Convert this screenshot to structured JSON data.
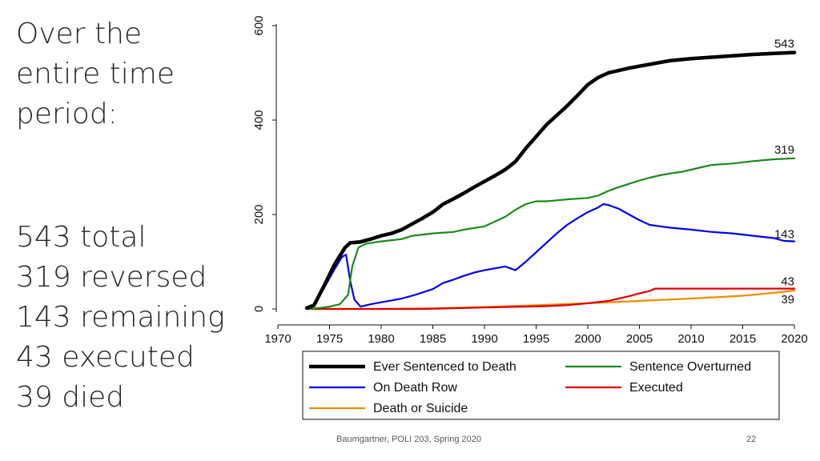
{
  "slide": {
    "heading_lines": [
      "Over the",
      "entire time",
      "period:"
    ],
    "summary_lines": [
      "543 total",
      "319 reversed",
      "143 remaining",
      "43 executed",
      "39 died"
    ],
    "footer": "Baumgartner, POLI 203, Spring 2020",
    "page_number": "22"
  },
  "chart_data": {
    "type": "line",
    "title": "",
    "xlabel": "",
    "ylabel": "",
    "xlim": [
      1970,
      2020
    ],
    "ylim": [
      0,
      600
    ],
    "x_ticks": [
      "1970",
      "1975",
      "1980",
      "1985",
      "1990",
      "1995",
      "2000",
      "2005",
      "2010",
      "2015",
      "2020"
    ],
    "y_ticks": [
      "0",
      "200",
      "400",
      "600"
    ],
    "legend_position": "bottom",
    "series": [
      {
        "name": "Ever Sentenced to Death",
        "color": "#000000",
        "end_label": "543",
        "x": [
          1972.8,
          1973.5,
          1974.5,
          1975.5,
          1976.5,
          1977,
          1978,
          1979,
          1980,
          1981,
          1982,
          1983,
          1984,
          1985,
          1986,
          1987,
          1988,
          1989,
          1990,
          1991,
          1992,
          1993,
          1994,
          1995,
          1996,
          1997,
          1998,
          1999,
          2000,
          2001,
          2002,
          2003,
          2004,
          2005,
          2006,
          2007,
          2008,
          2010,
          2012,
          2014,
          2016,
          2018,
          2020
        ],
        "y": [
          2,
          8,
          50,
          95,
          130,
          140,
          142,
          148,
          155,
          160,
          168,
          180,
          192,
          205,
          222,
          233,
          245,
          258,
          270,
          282,
          295,
          312,
          340,
          365,
          390,
          410,
          430,
          452,
          475,
          490,
          500,
          505,
          510,
          514,
          518,
          522,
          526,
          530,
          533,
          536,
          539,
          541,
          543
        ]
      },
      {
        "name": "Sentence Overturned",
        "color": "#1a8a1a",
        "end_label": "319",
        "x": [
          1972.8,
          1974,
          1975,
          1976,
          1976.8,
          1977.2,
          1977.8,
          1978.5,
          1980,
          1982,
          1983,
          1985,
          1987,
          1988,
          1990,
          1991,
          1992,
          1993,
          1994,
          1995,
          1996,
          1997,
          1998,
          2000,
          2001,
          2002,
          2003,
          2004,
          2005,
          2006,
          2007,
          2008,
          2009,
          2010,
          2011,
          2012,
          2014,
          2016,
          2018,
          2020
        ],
        "y": [
          0,
          2,
          5,
          10,
          30,
          90,
          130,
          138,
          143,
          148,
          155,
          160,
          163,
          168,
          175,
          185,
          195,
          210,
          222,
          228,
          228,
          230,
          232,
          235,
          240,
          250,
          258,
          265,
          272,
          278,
          283,
          287,
          290,
          295,
          300,
          305,
          308,
          313,
          317,
          319
        ]
      },
      {
        "name": "On Death Row",
        "color": "#0000ee",
        "end_label": "143",
        "x": [
          1972.8,
          1973.5,
          1974.5,
          1975.5,
          1976.2,
          1976.6,
          1977,
          1977.4,
          1978,
          1979,
          1980,
          1981,
          1982,
          1983,
          1984,
          1985,
          1986,
          1987,
          1988,
          1989,
          1990,
          1991,
          1992,
          1993,
          1994,
          1995,
          1996,
          1997,
          1998,
          1999,
          2000,
          2001,
          2001.5,
          2002,
          2003,
          2004,
          2005,
          2006,
          2007,
          2008,
          2010,
          2012,
          2014,
          2016,
          2018,
          2019,
          2020
        ],
        "y": [
          2,
          8,
          45,
          85,
          110,
          115,
          60,
          20,
          5,
          10,
          14,
          18,
          22,
          28,
          35,
          42,
          55,
          62,
          70,
          77,
          82,
          86,
          90,
          82,
          100,
          120,
          140,
          160,
          178,
          192,
          205,
          215,
          222,
          220,
          212,
          200,
          188,
          178,
          175,
          172,
          168,
          163,
          160,
          155,
          150,
          144,
          143
        ]
      },
      {
        "name": "Executed",
        "color": "#e00000",
        "end_label": "43",
        "x": [
          1972.8,
          1984,
          1986,
          1988,
          1990,
          1992,
          1994,
          1996,
          1998,
          2000,
          2002,
          2003,
          2004,
          2005,
          2006,
          2006.5,
          2008,
          2010,
          2015,
          2020
        ],
        "y": [
          0,
          0,
          1,
          2,
          3,
          4,
          5,
          6,
          8,
          12,
          17,
          22,
          27,
          33,
          38,
          43,
          43,
          43,
          43,
          43
        ]
      },
      {
        "name": "Death or Suicide",
        "color": "#f08c00",
        "end_label": "39",
        "x": [
          1972.8,
          1978,
          1980,
          1985,
          1990,
          1995,
          2000,
          2005,
          2010,
          2015,
          2018,
          2020
        ],
        "y": [
          0,
          0,
          0,
          1,
          4,
          8,
          12,
          17,
          22,
          28,
          34,
          39
        ]
      }
    ]
  }
}
